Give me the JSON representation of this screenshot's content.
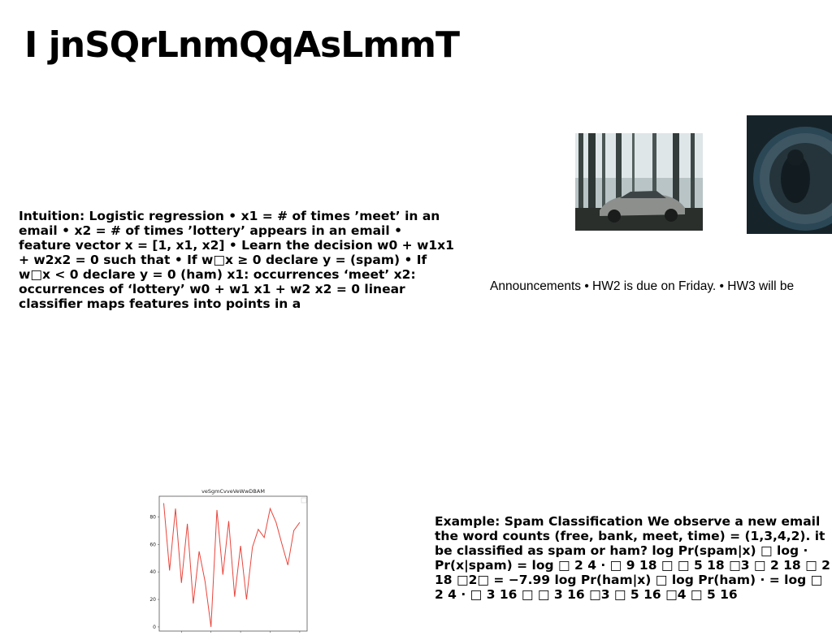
{
  "slide": {
    "title": "I jnSQrLnmQqAsLmmT",
    "intuition_text": "Intuition: Logistic regression • x1 = # of times ’meet’ in an email • x2 = # of times ’lottery’ appears in an email • feature vector x = [1, x1, x2] • Learn the decision w0 + w1x1 + w2x2 = 0 such that • If w□x ≥ 0 declare y = (spam) • If w□x < 0 declare y = 0 (ham) x1: occurrences ‘meet’ x2: occurrences of ‘lottery’ w0 + w1 x1 + w2 x2 = 0 linear classifier maps features into points in a",
    "announcements_text": "Announcements • HW2 is due on Friday. • HW3 will be",
    "example_text": "Example: Spam Classification We observe a new email the word counts (free, bank, meet, time) = (1,3,4,2). it be classified as spam or ham? log Pr(spam|x) □ log · Pr(x|spam) = log □ 2 4 · □ 9 18 □ □ 5 18 □3 □ 2 18 □ 2 18 □2□ = −7.99 log Pr(ham|x) □ log Pr(ham) · = log □ 2 4 · □ 3 16 □ □ 3 16 □3 □ 5 16 □4 □ 5 16"
  },
  "images": {
    "car_photo": "forest-car-photo",
    "lens_photo": "lens-reflection-photo"
  },
  "chart_data": {
    "type": "line",
    "title": "veSgmCvveVeWwDBAM",
    "xlabel": "",
    "ylabel": "",
    "xlim": [
      5,
      105
    ],
    "ylim": [
      -3,
      95
    ],
    "xticks": [
      20,
      40,
      60,
      80,
      100
    ],
    "yticks": [
      0,
      20,
      40,
      60,
      80
    ],
    "color": "#e8453c",
    "series": [
      {
        "x": [
          8,
          12,
          16,
          20,
          24,
          28,
          32,
          36,
          40,
          44,
          48,
          52,
          56,
          60,
          64,
          68,
          72,
          76,
          80,
          84,
          88,
          92,
          96,
          100
        ],
        "y": [
          90,
          41,
          86,
          32,
          75,
          17,
          55,
          33,
          0,
          85,
          38,
          77,
          22,
          59,
          20,
          58,
          71,
          65,
          86,
          76,
          60,
          45,
          70,
          76
        ]
      }
    ]
  }
}
